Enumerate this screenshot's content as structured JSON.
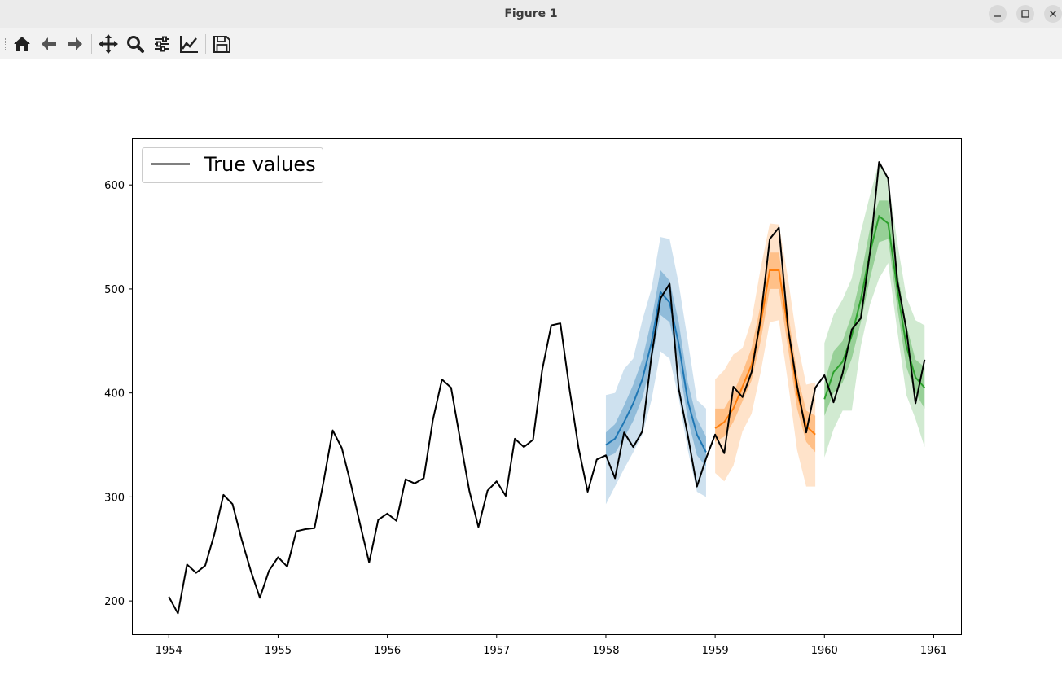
{
  "window": {
    "title": "Figure 1",
    "controls": [
      "minimize-icon",
      "maximize-icon",
      "close-icon"
    ]
  },
  "toolbar": {
    "buttons": [
      "home-icon",
      "back-icon",
      "forward-icon",
      "pan-icon",
      "zoom-icon",
      "configure-subplots-icon",
      "edit-axis-icon",
      "save-icon"
    ]
  },
  "colors": {
    "true_values": "#000000",
    "forecast_1958": "#1f77b4",
    "forecast_1959": "#ff7f0e",
    "forecast_1960": "#2ca02c"
  },
  "chart_data": {
    "type": "line",
    "title": "",
    "xlabel": "",
    "ylabel": "",
    "xlim": [
      1953.67,
      1961.25
    ],
    "ylim": [
      168,
      644
    ],
    "xticks": [
      "1954",
      "1955",
      "1956",
      "1957",
      "1958",
      "1959",
      "1960",
      "1961"
    ],
    "yticks": [
      "200",
      "300",
      "400",
      "500",
      "600"
    ],
    "legend": {
      "position": "upper-left",
      "entries": [
        "True values"
      ]
    },
    "grid": false,
    "true_values": {
      "name": "True values",
      "start": "1954-01",
      "frequency": "monthly",
      "values": [
        204,
        188,
        235,
        227,
        234,
        264,
        302,
        293,
        259,
        229,
        203,
        229,
        242,
        233,
        267,
        269,
        270,
        315,
        364,
        347,
        312,
        274,
        237,
        278,
        284,
        277,
        317,
        313,
        318,
        374,
        413,
        405,
        355,
        306,
        271,
        306,
        315,
        301,
        356,
        348,
        355,
        422,
        465,
        467,
        404,
        347,
        305,
        336,
        340,
        318,
        362,
        348,
        363,
        435,
        491,
        505,
        404,
        359,
        310,
        337,
        360,
        342,
        406,
        396,
        420,
        472,
        548,
        559,
        463,
        407,
        362,
        405,
        417,
        391,
        419,
        461,
        472,
        535,
        622,
        606,
        508,
        461,
        390,
        432
      ]
    },
    "forecasts": [
      {
        "start": "1958-01",
        "mean": [
          350,
          356,
          372,
          390,
          413,
          448,
          497,
          487,
          447,
          392,
          360,
          343
        ],
        "inner_lo": [
          338,
          342,
          357,
          373,
          395,
          430,
          475,
          468,
          428,
          375,
          340,
          329
        ],
        "inner_hi": [
          362,
          370,
          388,
          408,
          432,
          470,
          518,
          508,
          468,
          410,
          375,
          358
        ],
        "outer_lo": [
          293,
          310,
          327,
          343,
          360,
          393,
          440,
          433,
          395,
          345,
          305,
          300
        ],
        "outer_hi": [
          398,
          400,
          423,
          433,
          470,
          500,
          550,
          548,
          505,
          450,
          393,
          385
        ]
      },
      {
        "start": "1959-01",
        "mean": [
          366,
          372,
          385,
          406,
          427,
          467,
          518,
          518,
          461,
          400,
          368,
          360
        ],
        "inner_lo": [
          353,
          358,
          372,
          392,
          412,
          450,
          500,
          500,
          443,
          385,
          353,
          343
        ],
        "inner_hi": [
          385,
          385,
          400,
          420,
          443,
          485,
          535,
          535,
          478,
          418,
          383,
          378
        ],
        "outer_lo": [
          323,
          315,
          330,
          363,
          380,
          420,
          468,
          470,
          410,
          345,
          310,
          310
        ],
        "outer_hi": [
          413,
          422,
          437,
          443,
          470,
          520,
          563,
          562,
          510,
          450,
          408,
          410
        ]
      },
      {
        "start": "1960-01",
        "mean": [
          394,
          420,
          430,
          455,
          490,
          535,
          570,
          563,
          500,
          445,
          415,
          405
        ],
        "inner_lo": [
          378,
          400,
          410,
          433,
          468,
          510,
          545,
          548,
          482,
          425,
          400,
          385
        ],
        "inner_hi": [
          410,
          440,
          450,
          475,
          512,
          558,
          585,
          585,
          518,
          465,
          432,
          425
        ],
        "outer_lo": [
          338,
          365,
          383,
          383,
          445,
          485,
          510,
          525,
          460,
          398,
          375,
          348
        ],
        "outer_hi": [
          448,
          475,
          490,
          510,
          555,
          590,
          622,
          605,
          545,
          492,
          470,
          465
        ]
      }
    ]
  }
}
